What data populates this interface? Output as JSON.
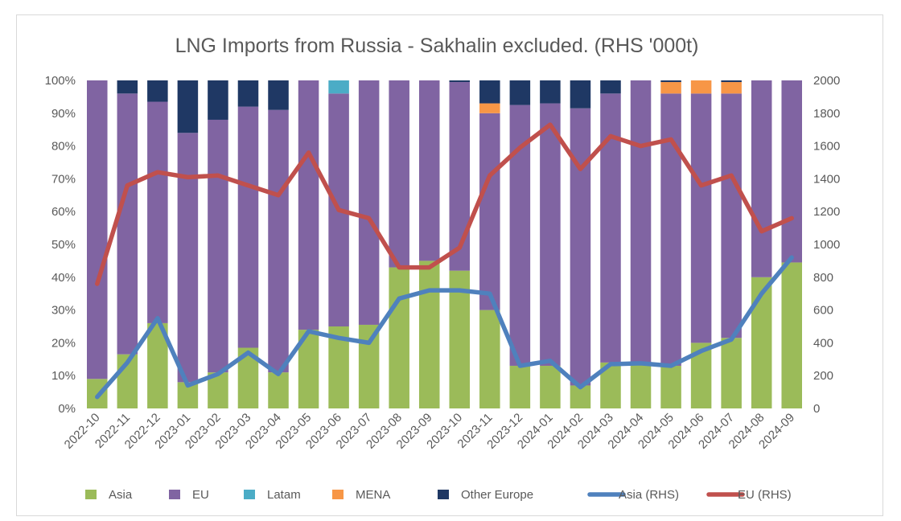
{
  "chart_data": {
    "type": "bar",
    "stacked": true,
    "title": "LNG Imports from Russia - Sakhalin excluded. (RHS '000t)",
    "categories": [
      "2022-10",
      "2022-11",
      "2022-12",
      "2023-01",
      "2023-02",
      "2023-03",
      "2023-04",
      "2023-05",
      "2023-06",
      "2023-07",
      "2023-08",
      "2023-09",
      "2023-10",
      "2023-11",
      "2023-12",
      "2024-01",
      "2024-02",
      "2024-03",
      "2024-04",
      "2024-05",
      "2024-06",
      "2024-07",
      "2024-08",
      "2024-09"
    ],
    "y_left": {
      "min": 0,
      "max": 100,
      "step": 10,
      "unit": "%"
    },
    "y_right": {
      "min": 0,
      "max": 2000,
      "step": 200
    },
    "grid": false,
    "legend_position": "bottom",
    "bar_series": [
      {
        "name": "Asia",
        "color": "#9bbb59",
        "values": [
          9,
          16.5,
          26,
          8,
          11,
          18.5,
          11,
          24,
          25,
          25.5,
          43,
          45,
          42,
          30,
          13,
          13,
          7,
          14,
          14,
          13,
          20,
          21.5,
          40,
          44.5
        ]
      },
      {
        "name": "EU",
        "color": "#8064a2",
        "values": [
          91,
          79.5,
          67.5,
          76,
          77,
          73.5,
          80,
          76,
          71,
          74.5,
          57,
          55,
          57.5,
          60,
          79.5,
          80,
          84.5,
          82,
          86,
          83,
          76,
          74.5,
          60,
          55.5
        ]
      },
      {
        "name": "Latam",
        "color": "#4bacc6",
        "values": [
          0,
          0,
          0,
          0,
          0,
          0,
          0,
          0,
          4,
          0,
          0,
          0,
          0,
          0,
          0,
          0,
          0,
          0,
          0,
          0,
          0,
          0,
          0,
          0
        ]
      },
      {
        "name": "MENA",
        "color": "#f79646",
        "values": [
          0,
          0,
          0,
          0,
          0,
          0,
          0,
          0,
          0,
          0,
          0,
          0,
          0,
          3,
          0,
          0,
          0,
          0,
          0,
          3.5,
          4,
          3.5,
          0,
          0
        ]
      },
      {
        "name": "Other Europe",
        "color": "#1f3864",
        "values": [
          0,
          4,
          6.5,
          16,
          12,
          8,
          9,
          0,
          0,
          0,
          0,
          0,
          0.5,
          7,
          7.5,
          7,
          8.5,
          4,
          0,
          0.5,
          0,
          0.5,
          0,
          0
        ]
      }
    ],
    "line_series": [
      {
        "name": "Asia (RHS)",
        "axis": "right",
        "color": "#4f81bd",
        "values": [
          70,
          280,
          550,
          140,
          210,
          340,
          210,
          470,
          430,
          400,
          670,
          720,
          720,
          700,
          260,
          290,
          130,
          270,
          275,
          260,
          350,
          420,
          700,
          920
        ]
      },
      {
        "name": "EU (RHS)",
        "axis": "right",
        "color": "#c0504d",
        "values": [
          760,
          1360,
          1440,
          1410,
          1420,
          1360,
          1300,
          1560,
          1210,
          1160,
          860,
          860,
          980,
          1420,
          1590,
          1730,
          1460,
          1660,
          1600,
          1640,
          1360,
          1420,
          1080,
          1160
        ]
      }
    ]
  }
}
